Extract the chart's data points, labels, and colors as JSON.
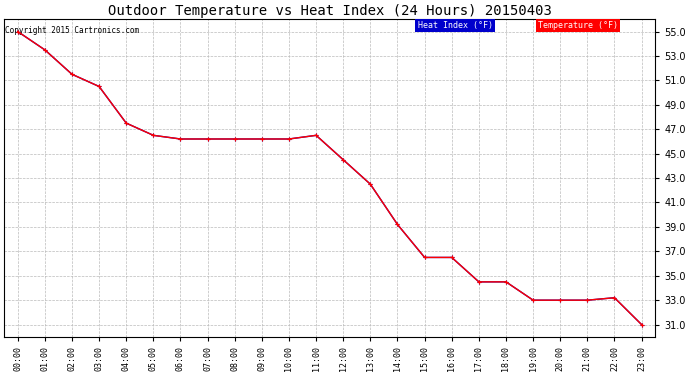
{
  "title": "Outdoor Temperature vs Heat Index (24 Hours) 20150403",
  "copyright": "Copyright 2015 Cartronics.com",
  "x_labels": [
    "00:00",
    "01:00",
    "02:00",
    "03:00",
    "04:00",
    "05:00",
    "06:00",
    "07:00",
    "08:00",
    "09:00",
    "10:00",
    "11:00",
    "12:00",
    "13:00",
    "14:00",
    "15:00",
    "16:00",
    "17:00",
    "18:00",
    "19:00",
    "20:00",
    "21:00",
    "22:00",
    "23:00"
  ],
  "temperature": [
    55.0,
    53.5,
    51.5,
    50.5,
    47.5,
    46.5,
    46.2,
    46.2,
    46.2,
    46.2,
    46.2,
    46.5,
    44.5,
    42.5,
    39.2,
    36.5,
    36.5,
    34.5,
    34.5,
    33.0,
    33.0,
    33.0,
    33.2,
    31.0
  ],
  "heat_index": [
    55.0,
    53.5,
    51.5,
    50.5,
    47.5,
    46.5,
    46.2,
    46.2,
    46.2,
    46.2,
    46.2,
    46.5,
    44.5,
    42.5,
    39.2,
    36.5,
    36.5,
    34.5,
    34.5,
    33.0,
    33.0,
    33.0,
    33.2,
    31.0
  ],
  "ylim": [
    30.0,
    56.0
  ],
  "yticks": [
    31.0,
    33.0,
    35.0,
    37.0,
    39.0,
    41.0,
    43.0,
    45.0,
    47.0,
    49.0,
    51.0,
    53.0,
    55.0
  ],
  "temp_color": "#ff0000",
  "heat_index_color": "#0000cc",
  "bg_color": "#ffffff",
  "plot_bg_color": "#ffffff",
  "grid_color": "#bbbbbb",
  "title_fontsize": 10,
  "legend_heat_label": "Heat Index (°F)",
  "legend_temp_label": "Temperature (°F)",
  "legend_heat_bg": "#0000cc",
  "legend_temp_bg": "#ff0000"
}
